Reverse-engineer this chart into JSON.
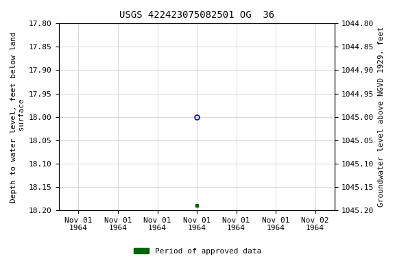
{
  "title": "USGS 422423075082501 OG  36",
  "ylabel_left": "Depth to water level, feet below land\n surface",
  "ylabel_right": "Groundwater level above NGVD 1929, feet",
  "ylim_left": [
    17.8,
    18.2
  ],
  "ylim_right": [
    1045.2,
    1044.8
  ],
  "yticks_left": [
    17.8,
    17.85,
    17.9,
    17.95,
    18.0,
    18.05,
    18.1,
    18.15,
    18.2
  ],
  "yticks_right": [
    1045.2,
    1045.15,
    1045.1,
    1045.05,
    1045.0,
    1044.95,
    1044.9,
    1044.85,
    1044.8
  ],
  "point_color_unapproved": "#0000cc",
  "point_color_approved": "#006600",
  "legend_label": "Period of approved data",
  "legend_color": "#006600",
  "background_color": "#ffffff",
  "grid_color": "#c8c8c8",
  "title_fontsize": 10,
  "axis_label_fontsize": 8,
  "tick_fontsize": 8
}
